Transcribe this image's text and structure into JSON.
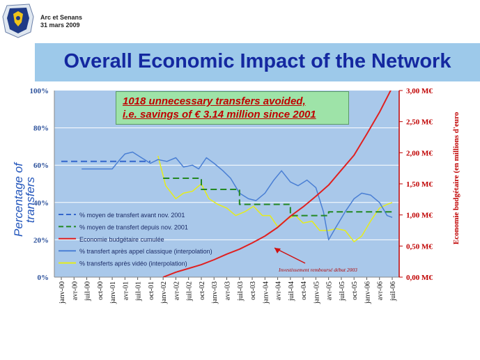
{
  "header": {
    "meeting": "Arc et Senans",
    "date": "31 mars 2009"
  },
  "title": "Overall Economic Impact of the Network",
  "callout": {
    "line1": "1018 unnecessary transfers avoided,",
    "line2": "i.e. savings of € 3.14 million since 2001"
  },
  "chart_data": {
    "type": "line",
    "ylabel_left": "Percentage of transfers",
    "ylabel_right": "Economie budgétaire (en millions d'euro",
    "left_axis": {
      "range": [
        0,
        100
      ],
      "ticks": [
        "0%",
        "20%",
        "40%",
        "60%",
        "80%",
        "100%"
      ]
    },
    "right_axis": {
      "range": [
        0,
        3
      ],
      "ticks": [
        "0,00 M€",
        "0,50 M€",
        "1,00 M€",
        "1,50 M€",
        "2,00 M€",
        "2,50 M€",
        "3,00 M€"
      ]
    },
    "x_labels": [
      "janv-00",
      "avr-00",
      "juil-00",
      "oct-00",
      "janv-01",
      "avr-01",
      "juil-01",
      "oct-01",
      "janv-02",
      "avr-02",
      "juil-02",
      "oct-02",
      "janv-03",
      "avr-03",
      "juil-03",
      "oct-03",
      "janv-04",
      "avr-04",
      "juil-04",
      "oct-04",
      "janv-05",
      "avr-05",
      "juil-05",
      "oct-05",
      "janv-06",
      "avr-06",
      "juil-06"
    ],
    "annotation": "Investissement remboursé début 2003",
    "grid": true,
    "background": "#a9c8ea",
    "series": [
      {
        "name": "% moyen de transfert avant nov. 2001",
        "color": "#3366cc",
        "style": "dashed",
        "axis": "left",
        "points": [
          [
            0,
            62
          ],
          [
            7,
            62
          ]
        ]
      },
      {
        "name": "% moyen de transfert depuis nov. 2001",
        "color": "#228822",
        "style": "dashed",
        "axis": "left",
        "points": [
          [
            8,
            53
          ],
          [
            11,
            53
          ],
          [
            11,
            47
          ],
          [
            14,
            47
          ],
          [
            14,
            39
          ],
          [
            18,
            39
          ],
          [
            18,
            33
          ],
          [
            21,
            33
          ],
          [
            21,
            35
          ],
          [
            26,
            35
          ]
        ]
      },
      {
        "name": "Economie budgétaire cumulée",
        "color": "#e02020",
        "style": "solid",
        "axis": "right",
        "points": [
          [
            8,
            0.0
          ],
          [
            9,
            0.08
          ],
          [
            10,
            0.14
          ],
          [
            11,
            0.2
          ],
          [
            12,
            0.28
          ],
          [
            13,
            0.37
          ],
          [
            14,
            0.45
          ],
          [
            15,
            0.55
          ],
          [
            16,
            0.66
          ],
          [
            17,
            0.8
          ],
          [
            18,
            0.98
          ],
          [
            19,
            1.13
          ],
          [
            20,
            1.3
          ],
          [
            21,
            1.48
          ],
          [
            22,
            1.72
          ],
          [
            23,
            1.96
          ],
          [
            24,
            2.3
          ],
          [
            25,
            2.65
          ],
          [
            26,
            3.05
          ]
        ]
      },
      {
        "name": "% transfert après appel classique (interpolation)",
        "color": "#4a7fd4",
        "style": "solid",
        "axis": "left",
        "points": [
          [
            1.6,
            58
          ],
          [
            3.4,
            58
          ],
          [
            4,
            58
          ],
          [
            4.6,
            63
          ],
          [
            5,
            66
          ],
          [
            5.6,
            67
          ],
          [
            6.3,
            64
          ],
          [
            7,
            61
          ],
          [
            7.6,
            63
          ],
          [
            8.3,
            62
          ],
          [
            9,
            64
          ],
          [
            9.6,
            59
          ],
          [
            10.3,
            60
          ],
          [
            10.8,
            58
          ],
          [
            11.4,
            64
          ],
          [
            12,
            61
          ],
          [
            12.7,
            57
          ],
          [
            13.3,
            53
          ],
          [
            14,
            45
          ],
          [
            14.7,
            42
          ],
          [
            15.3,
            41
          ],
          [
            16,
            45
          ],
          [
            16.7,
            52
          ],
          [
            17.3,
            57
          ],
          [
            18,
            51
          ],
          [
            18.6,
            49
          ],
          [
            19.3,
            52
          ],
          [
            20,
            48
          ],
          [
            20.6,
            35
          ],
          [
            21,
            20
          ],
          [
            21.6,
            27
          ],
          [
            22.3,
            35
          ],
          [
            23,
            42
          ],
          [
            23.6,
            45
          ],
          [
            24.3,
            44
          ],
          [
            25,
            40
          ],
          [
            25.6,
            33
          ],
          [
            26,
            32
          ]
        ]
      },
      {
        "name": "% transferts après vidéo (interpolation)",
        "color": "#e6ed1a",
        "style": "solid",
        "axis": "left",
        "points": [
          [
            7.6,
            65
          ],
          [
            8.2,
            49
          ],
          [
            9,
            42
          ],
          [
            9.6,
            45
          ],
          [
            10.3,
            46
          ],
          [
            11,
            50
          ],
          [
            11.6,
            42
          ],
          [
            12.3,
            39
          ],
          [
            13,
            37
          ],
          [
            13.7,
            33
          ],
          [
            14.4,
            35
          ],
          [
            15.1,
            38
          ],
          [
            15.8,
            33
          ],
          [
            16.4,
            33
          ],
          [
            17,
            27
          ],
          [
            17.7,
            31
          ],
          [
            18.4,
            33
          ],
          [
            19,
            29
          ],
          [
            19.7,
            30
          ],
          [
            20.3,
            25
          ],
          [
            21,
            25
          ],
          [
            21.6,
            26
          ],
          [
            22.3,
            25
          ],
          [
            23,
            19
          ],
          [
            23.6,
            22
          ],
          [
            24.3,
            30
          ],
          [
            25,
            37
          ],
          [
            25.6,
            39
          ],
          [
            26,
            40
          ]
        ]
      }
    ]
  }
}
